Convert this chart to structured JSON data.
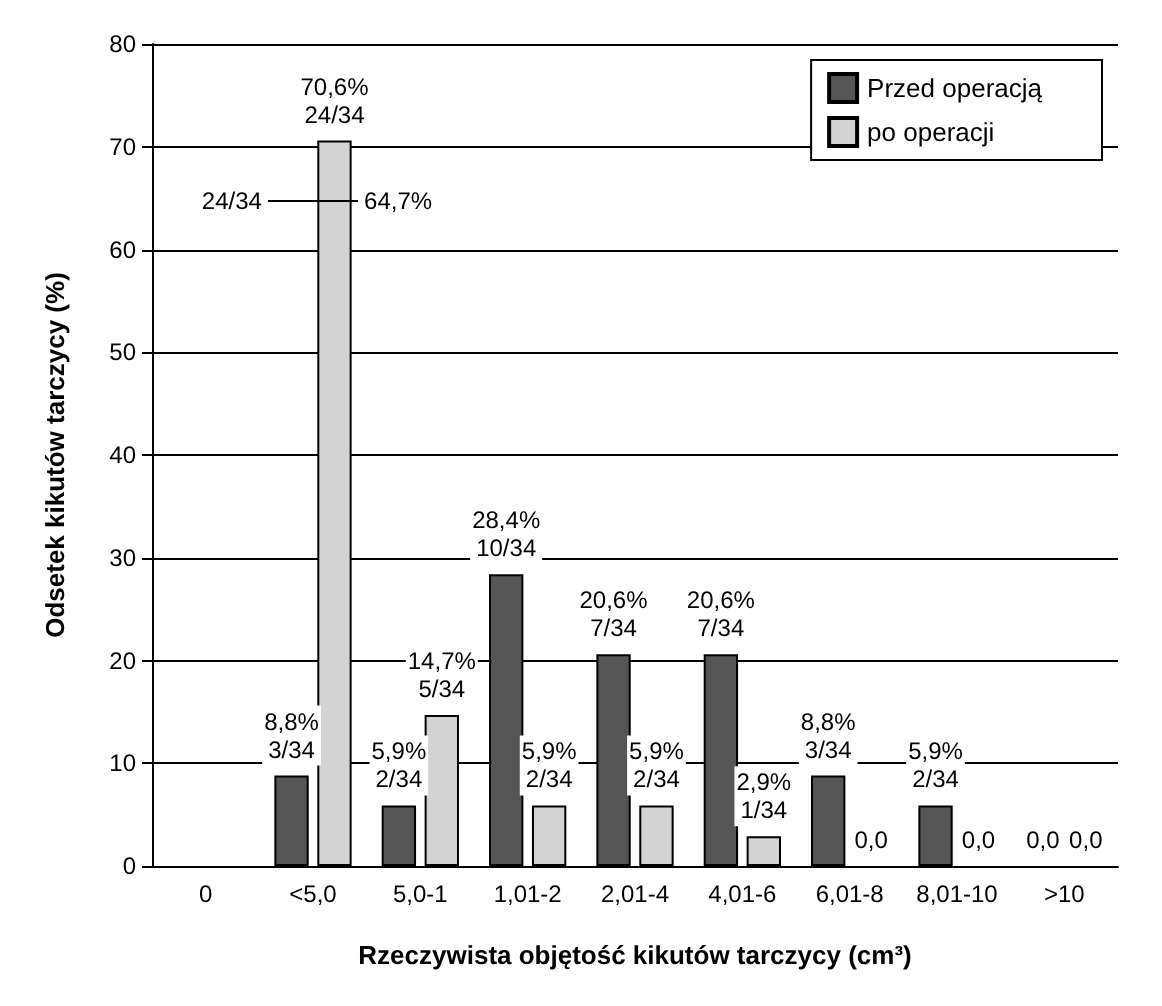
{
  "chart_data": {
    "type": "bar",
    "xlabel": "Rzeczywista objętość kikutów tarczycy (cm³)",
    "ylabel": "Odsetek kikutów tarczycy (%)",
    "categories": [
      "0",
      "<5,0",
      "5,0-1",
      "1,01-2",
      "2,01-4",
      "4,01-6",
      "6,01-8",
      "8,01-10",
      ">10"
    ],
    "series": [
      {
        "name": "Przed operacją",
        "color": "#555555",
        "values": [
          null,
          8.8,
          5.9,
          28.4,
          20.6,
          20.6,
          8.8,
          5.9,
          0
        ],
        "value_labels": [
          null,
          "8,8%\n3/34",
          "5,9%\n2/34",
          "28,4%\n10/34",
          "20,6%\n7/34",
          "20,6%\n7/34",
          "8,8%\n3/34",
          "5,9%\n2/34",
          "0,0"
        ]
      },
      {
        "name": "po operacji",
        "color": "#d3d3d3",
        "values": [
          null,
          70.6,
          14.7,
          5.9,
          5.9,
          2.9,
          0,
          0,
          0
        ],
        "value_labels": [
          null,
          "70,6%\n24/34",
          "14,7%\n5/34",
          "5,9%\n2/34",
          "5,9%\n2/34",
          "2,9%\n1/34",
          "0,0",
          "0,0",
          "0,0"
        ]
      }
    ],
    "ylim": [
      0,
      80
    ],
    "yticks": [
      0,
      10,
      20,
      30,
      40,
      50,
      60,
      70,
      80
    ],
    "grid": "y",
    "legend": "top right",
    "annotations": [
      {
        "text": "24/34",
        "x": "<5,0",
        "y": 64.7
      },
      {
        "text": "64,7%",
        "x": "<5,0",
        "y": 64.7
      }
    ]
  }
}
